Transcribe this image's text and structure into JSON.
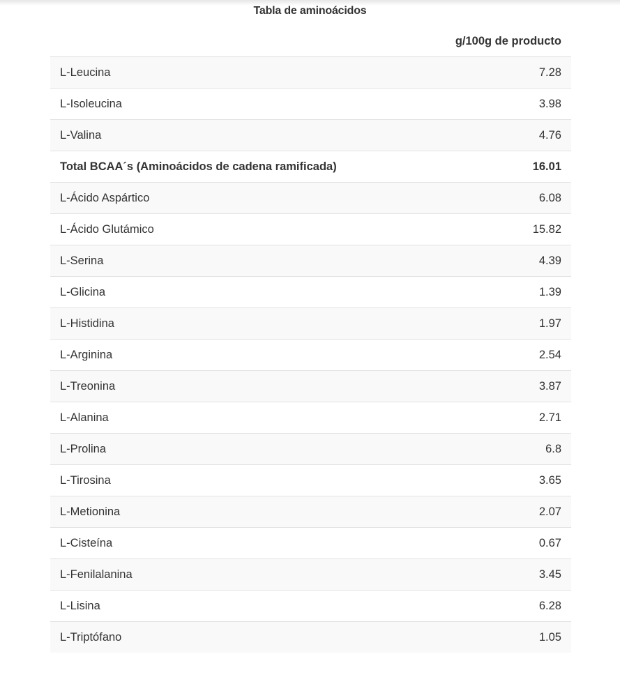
{
  "title": "Tabla de aminoácidos",
  "column_header": "g/100g de producto",
  "rows": [
    {
      "name": "L-Leucina",
      "value": "7.28"
    },
    {
      "name": "L-Isoleucina",
      "value": "3.98"
    },
    {
      "name": "L-Valina",
      "value": "4.76"
    },
    {
      "name": "Total BCAA´s (Aminoácidos de cadena ramificada)",
      "value": "16.01",
      "bold": true
    },
    {
      "name": "L-Ácido Aspártico",
      "value": "6.08"
    },
    {
      "name": "L-Ácido Glutámico",
      "value": "15.82"
    },
    {
      "name": "L-Serina",
      "value": "4.39"
    },
    {
      "name": "L-Glicina",
      "value": "1.39"
    },
    {
      "name": "L-Histidina",
      "value": "1.97"
    },
    {
      "name": "L-Arginina",
      "value": "2.54"
    },
    {
      "name": "L-Treonina",
      "value": "3.87"
    },
    {
      "name": "L-Alanina",
      "value": "2.71"
    },
    {
      "name": "L-Prolina",
      "value": "6.8"
    },
    {
      "name": "L-Tirosina",
      "value": "3.65"
    },
    {
      "name": "L-Metionina",
      "value": "2.07"
    },
    {
      "name": "L-Cisteína",
      "value": "0.67"
    },
    {
      "name": "L-Fenilalanina",
      "value": "3.45"
    },
    {
      "name": "L-Lisina",
      "value": "6.28"
    },
    {
      "name": "L-Triptófano",
      "value": "1.05"
    }
  ]
}
